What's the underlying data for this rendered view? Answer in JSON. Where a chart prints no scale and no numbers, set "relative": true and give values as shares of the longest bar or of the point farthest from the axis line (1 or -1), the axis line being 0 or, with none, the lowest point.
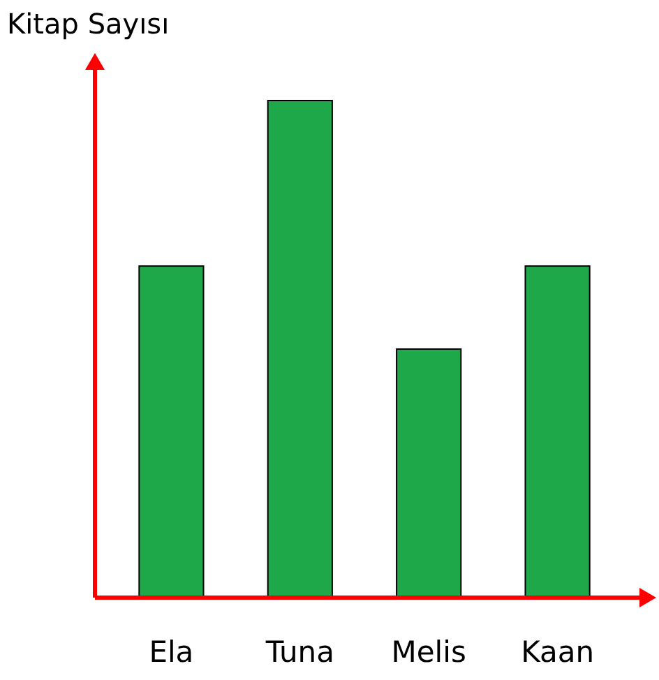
{
  "chart_data": {
    "type": "bar",
    "ylabel": "Kitap Sayısı",
    "categories": [
      "Ela",
      "Tuna",
      "Melis",
      "Kaan"
    ],
    "values": [
      0.667,
      1,
      0.5,
      0.667
    ],
    "relative": true,
    "color": "#1fa84a"
  }
}
